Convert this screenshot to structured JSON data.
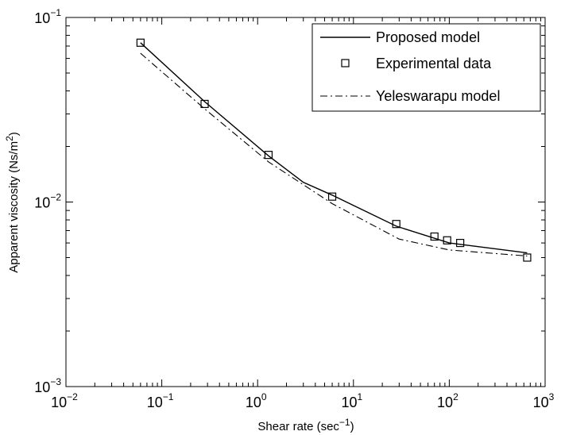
{
  "chart_data": {
    "type": "line",
    "xlabel": {
      "base": "Shear rate (sec",
      "sup": "−1",
      "tail": ")"
    },
    "ylabel": {
      "base": "Apparent viscosity (Ns/m",
      "sup": "2",
      "tail": ")"
    },
    "x_scale": "log",
    "y_scale": "log",
    "xlim": [
      0.01,
      1000
    ],
    "ylim": [
      0.001,
      0.1
    ],
    "x_ticks": [
      {
        "value": 0.01,
        "base": "10",
        "exp": "−2"
      },
      {
        "value": 0.1,
        "base": "10",
        "exp": "−1"
      },
      {
        "value": 1,
        "base": "10",
        "exp": "0"
      },
      {
        "value": 10,
        "base": "10",
        "exp": "1"
      },
      {
        "value": 100,
        "base": "10",
        "exp": "2"
      },
      {
        "value": 1000,
        "base": "10",
        "exp": "3"
      }
    ],
    "y_ticks": [
      {
        "value": 0.001,
        "base": "10",
        "exp": "−3"
      },
      {
        "value": 0.01,
        "base": "10",
        "exp": "−2"
      },
      {
        "value": 0.1,
        "base": "10",
        "exp": "−1"
      }
    ],
    "grid": false,
    "legend_position": "top-right",
    "series": [
      {
        "name": "Proposed model",
        "style": "solid",
        "x": [
          0.06,
          0.28,
          1.3,
          3.0,
          6,
          28,
          100,
          650
        ],
        "y": [
          0.073,
          0.035,
          0.0178,
          0.0128,
          0.0109,
          0.0074,
          0.006,
          0.0053
        ]
      },
      {
        "name": "Experimental data",
        "style": "square-marker",
        "x": [
          0.06,
          0.28,
          1.3,
          6,
          28,
          70,
          95,
          130,
          650
        ],
        "y": [
          0.073,
          0.034,
          0.018,
          0.0107,
          0.0076,
          0.0065,
          0.0062,
          0.006,
          0.005
        ]
      },
      {
        "name": "Yeleswarapu model",
        "style": "dash-dot",
        "x": [
          0.06,
          0.28,
          1.3,
          6,
          30,
          100,
          650
        ],
        "y": [
          0.064,
          0.032,
          0.0165,
          0.0098,
          0.0063,
          0.0055,
          0.0051
        ]
      }
    ]
  }
}
